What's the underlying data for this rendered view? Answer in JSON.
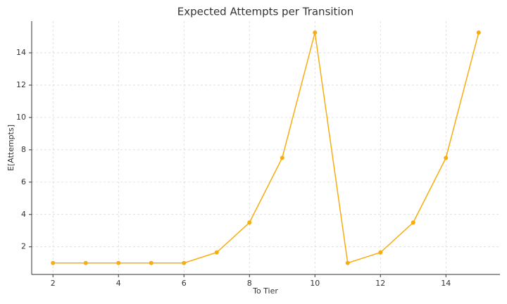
{
  "chart_data": {
    "type": "line",
    "title": "Expected Attempts per Transition",
    "x_label": "To Tier",
    "y_label": "E[Attempts]",
    "x": [
      2,
      3,
      4,
      5,
      6,
      7,
      8,
      9,
      10,
      11,
      12,
      13,
      14,
      15
    ],
    "values": [
      1,
      1,
      1,
      1,
      1,
      1.65,
      3.5,
      7.5,
      15.25,
      1,
      1.65,
      3.5,
      7.5,
      15.25
    ],
    "color": "#f7ac10",
    "xlim": [
      1.35,
      15.65
    ],
    "ylim": [
      0.29,
      15.96
    ],
    "xticks": [
      2,
      4,
      6,
      8,
      10,
      12,
      14
    ],
    "yticks": [
      2,
      4,
      6,
      8,
      10,
      12,
      14
    ],
    "grid": true
  }
}
